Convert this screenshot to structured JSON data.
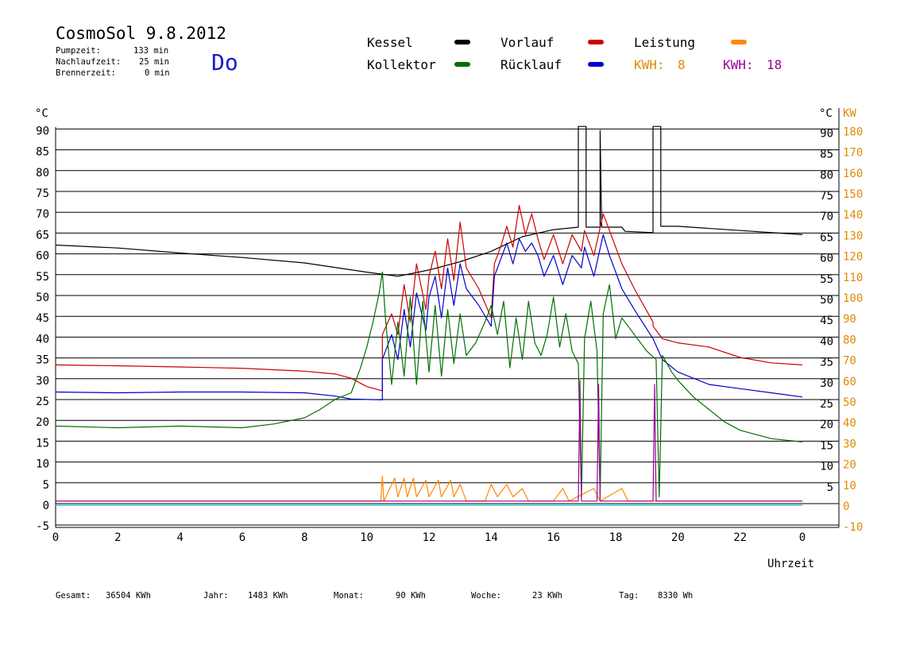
{
  "header": {
    "title": "CosmoSol 9.8.2012",
    "pump_label": "Pumpzeit:",
    "pump_value": "133 min",
    "nach_label": "Nachlaufzeit:",
    "nach_value": "25 min",
    "brenner_label": "Brennerzeit:",
    "brenner_value": "0 min",
    "weekday": "Do"
  },
  "legend": {
    "kessel": "Kessel",
    "kollektor": "Kollektor",
    "vorlauf": "Vorlauf",
    "ruecklauf": "Rücklauf",
    "leistung": "Leistung",
    "kwh1_label": "KWH:",
    "kwh1_value": "8",
    "kwh2_label": "KWH:",
    "kwh2_value": "18"
  },
  "footer": {
    "gesamt_label": "Gesamt:",
    "gesamt_value": "36504 KWh",
    "jahr_label": "Jahr:",
    "jahr_value": "1483 KWh",
    "monat_label": "Monat:",
    "monat_value": "90 KWh",
    "woche_label": "Woche:",
    "woche_value": "23 KWh",
    "tag_label": "Tag:",
    "tag_value": "8330 Wh"
  },
  "colors": {
    "kessel": "#000000",
    "kollektor": "#007000",
    "vorlauf": "#cc0000",
    "ruecklauf": "#0000cc",
    "leistung": "#ff8800",
    "kwh2": "#990099",
    "baseline": "#33cccc",
    "weekday": "#1a1acc",
    "right_axis_orange": "#e08a00"
  },
  "chart_data": {
    "type": "line",
    "xlabel": "Uhrzeit",
    "ylabel": "°C",
    "y2label": "KW",
    "x_ticks": [
      "0",
      "2",
      "4",
      "6",
      "8",
      "10",
      "12",
      "14",
      "16",
      "18",
      "20",
      "22",
      "0"
    ],
    "y_ticks_left": [
      "-5",
      "0",
      "5",
      "10",
      "15",
      "20",
      "25",
      "30",
      "35",
      "40",
      "45",
      "50",
      "55",
      "60",
      "65",
      "70",
      "75",
      "80",
      "85",
      "90"
    ],
    "y_ticks_right": [
      "5",
      "10",
      "15",
      "20",
      "25",
      "30",
      "35",
      "40",
      "45",
      "50",
      "55",
      "60",
      "65",
      "70",
      "75",
      "80",
      "85",
      "90"
    ],
    "y2_ticks": [
      "-10",
      "0",
      "10",
      "20",
      "30",
      "40",
      "50",
      "60",
      "70",
      "80",
      "90",
      "100",
      "110",
      "120",
      "130",
      "140",
      "150",
      "160",
      "170",
      "180"
    ],
    "xlim": [
      0,
      24
    ],
    "ylim": [
      -5,
      92
    ],
    "y2lim": [
      -10,
      184
    ],
    "grid": true,
    "series": [
      {
        "name": "Kessel",
        "color": "#000000",
        "points": [
          [
            0,
            62.5
          ],
          [
            2,
            61.8
          ],
          [
            4,
            60.6
          ],
          [
            6,
            59.5
          ],
          [
            8,
            58.2
          ],
          [
            10,
            56
          ],
          [
            11,
            55
          ],
          [
            12,
            56.5
          ],
          [
            13,
            58.5
          ],
          [
            14,
            61
          ],
          [
            15,
            64.5
          ],
          [
            16,
            66.2
          ],
          [
            16.8,
            66.8
          ],
          [
            16.8,
            91
          ],
          [
            17.05,
            91
          ],
          [
            17.05,
            66.8
          ],
          [
            17.5,
            66.8
          ],
          [
            17.5,
            90
          ],
          [
            17.55,
            66.8
          ],
          [
            18.2,
            66.8
          ],
          [
            18.3,
            65.8
          ],
          [
            19.2,
            65.5
          ],
          [
            19.2,
            91
          ],
          [
            19.45,
            91
          ],
          [
            19.45,
            67
          ],
          [
            20,
            67
          ],
          [
            22,
            66
          ],
          [
            24,
            65
          ]
        ]
      },
      {
        "name": "Vorlauf",
        "color": "#cc0000",
        "points": [
          [
            0,
            33.7
          ],
          [
            2,
            33.5
          ],
          [
            4,
            33.2
          ],
          [
            6,
            32.9
          ],
          [
            8,
            32.2
          ],
          [
            9,
            31.5
          ],
          [
            9.5,
            30.5
          ],
          [
            10,
            28.5
          ],
          [
            10.5,
            27.5
          ],
          [
            10.5,
            41
          ],
          [
            10.8,
            46
          ],
          [
            11,
            41
          ],
          [
            11.2,
            53
          ],
          [
            11.4,
            44
          ],
          [
            11.6,
            58
          ],
          [
            11.9,
            47
          ],
          [
            12,
            55
          ],
          [
            12.2,
            61
          ],
          [
            12.4,
            52
          ],
          [
            12.6,
            64
          ],
          [
            12.8,
            54
          ],
          [
            13,
            68
          ],
          [
            13.2,
            57
          ],
          [
            13.6,
            52
          ],
          [
            14,
            45
          ],
          [
            14.1,
            58
          ],
          [
            14.3,
            62
          ],
          [
            14.5,
            67
          ],
          [
            14.7,
            62
          ],
          [
            14.9,
            72
          ],
          [
            15.1,
            65
          ],
          [
            15.3,
            70
          ],
          [
            15.5,
            64
          ],
          [
            15.7,
            59
          ],
          [
            16,
            65
          ],
          [
            16.3,
            58
          ],
          [
            16.6,
            65
          ],
          [
            16.9,
            61
          ],
          [
            17.0,
            66
          ],
          [
            17.3,
            60
          ],
          [
            17.6,
            70
          ],
          [
            17.8,
            66
          ],
          [
            18.2,
            58
          ],
          [
            18.6,
            52
          ],
          [
            19.2,
            44
          ],
          [
            19.2,
            43
          ],
          [
            19.5,
            40
          ],
          [
            20,
            39
          ],
          [
            21,
            38
          ],
          [
            22,
            35.5
          ],
          [
            23,
            34.2
          ],
          [
            24,
            33.7
          ]
        ]
      },
      {
        "name": "Rücklauf",
        "color": "#0000cc",
        "points": [
          [
            0,
            27.2
          ],
          [
            2,
            27
          ],
          [
            4,
            27.2
          ],
          [
            6,
            27.2
          ],
          [
            8,
            27
          ],
          [
            9,
            26.2
          ],
          [
            9.5,
            25.5
          ],
          [
            10.5,
            25.3
          ],
          [
            10.5,
            35
          ],
          [
            10.8,
            41
          ],
          [
            11,
            35
          ],
          [
            11.2,
            47
          ],
          [
            11.4,
            38
          ],
          [
            11.6,
            51
          ],
          [
            11.9,
            42
          ],
          [
            12,
            50
          ],
          [
            12.2,
            55
          ],
          [
            12.4,
            45
          ],
          [
            12.6,
            57
          ],
          [
            12.8,
            48
          ],
          [
            13,
            58
          ],
          [
            13.2,
            52
          ],
          [
            13.6,
            48
          ],
          [
            14,
            43
          ],
          [
            14.1,
            55
          ],
          [
            14.3,
            59
          ],
          [
            14.5,
            63
          ],
          [
            14.7,
            58
          ],
          [
            14.9,
            64
          ],
          [
            15.1,
            61
          ],
          [
            15.3,
            63
          ],
          [
            15.5,
            60
          ],
          [
            15.7,
            55
          ],
          [
            16,
            60
          ],
          [
            16.3,
            53
          ],
          [
            16.6,
            60
          ],
          [
            16.9,
            57
          ],
          [
            17.0,
            62
          ],
          [
            17.3,
            55
          ],
          [
            17.6,
            65
          ],
          [
            17.8,
            60
          ],
          [
            18.2,
            52
          ],
          [
            18.6,
            47
          ],
          [
            19.2,
            40
          ],
          [
            19.5,
            35
          ],
          [
            20,
            32
          ],
          [
            21,
            29
          ],
          [
            22,
            28
          ],
          [
            23,
            27
          ],
          [
            24,
            26
          ]
        ]
      },
      {
        "name": "Kollektor",
        "color": "#007000",
        "points": [
          [
            0,
            19
          ],
          [
            2,
            18.6
          ],
          [
            4,
            19
          ],
          [
            6,
            18.6
          ],
          [
            7,
            19.5
          ],
          [
            8,
            21
          ],
          [
            8.5,
            23
          ],
          [
            9,
            25.5
          ],
          [
            9.5,
            27
          ],
          [
            9.8,
            33
          ],
          [
            10,
            38
          ],
          [
            10.2,
            44
          ],
          [
            10.4,
            51
          ],
          [
            10.5,
            56
          ],
          [
            10.6,
            45
          ],
          [
            10.8,
            29
          ],
          [
            11,
            44
          ],
          [
            11.2,
            31
          ],
          [
            11.4,
            50
          ],
          [
            11.6,
            29
          ],
          [
            11.8,
            49
          ],
          [
            12,
            32
          ],
          [
            12.2,
            48
          ],
          [
            12.4,
            31
          ],
          [
            12.6,
            47
          ],
          [
            12.8,
            34
          ],
          [
            13,
            46
          ],
          [
            13.2,
            36
          ],
          [
            13.5,
            39
          ],
          [
            13.8,
            44
          ],
          [
            14,
            48
          ],
          [
            14.2,
            41
          ],
          [
            14.4,
            49
          ],
          [
            14.6,
            33
          ],
          [
            14.8,
            45
          ],
          [
            15,
            35
          ],
          [
            15.2,
            49
          ],
          [
            15.4,
            39
          ],
          [
            15.6,
            36
          ],
          [
            15.8,
            41
          ],
          [
            16,
            50
          ],
          [
            16.2,
            38
          ],
          [
            16.4,
            46
          ],
          [
            16.6,
            37
          ],
          [
            16.8,
            34
          ],
          [
            16.9,
            2
          ],
          [
            17.0,
            40
          ],
          [
            17.2,
            49
          ],
          [
            17.4,
            37
          ],
          [
            17.5,
            2
          ],
          [
            17.6,
            46
          ],
          [
            17.8,
            53
          ],
          [
            18.0,
            40
          ],
          [
            18.2,
            45
          ],
          [
            18.6,
            41
          ],
          [
            19.0,
            37
          ],
          [
            19.3,
            35
          ],
          [
            19.4,
            2
          ],
          [
            19.5,
            36
          ],
          [
            19.8,
            32
          ],
          [
            20,
            30
          ],
          [
            20.5,
            26
          ],
          [
            21,
            23
          ],
          [
            21.5,
            20
          ],
          [
            22,
            18
          ],
          [
            23,
            16
          ],
          [
            24,
            15.2
          ]
        ]
      },
      {
        "name": "Leistung",
        "color": "#ff8800",
        "points": [
          [
            0,
            1
          ],
          [
            10.45,
            1
          ],
          [
            10.5,
            7
          ],
          [
            10.55,
            1
          ],
          [
            10.9,
            6.5
          ],
          [
            11.0,
            2
          ],
          [
            11.2,
            6.5
          ],
          [
            11.3,
            2
          ],
          [
            11.5,
            6.5
          ],
          [
            11.6,
            2
          ],
          [
            11.9,
            6
          ],
          [
            12.0,
            2
          ],
          [
            12.3,
            6
          ],
          [
            12.4,
            2
          ],
          [
            12.7,
            6
          ],
          [
            12.8,
            2
          ],
          [
            13.0,
            5
          ],
          [
            13.2,
            1
          ],
          [
            13.8,
            1
          ],
          [
            14.0,
            5
          ],
          [
            14.2,
            2
          ],
          [
            14.5,
            5
          ],
          [
            14.7,
            2
          ],
          [
            15.0,
            4
          ],
          [
            15.2,
            1
          ],
          [
            16,
            1
          ],
          [
            16.3,
            4
          ],
          [
            16.5,
            1
          ],
          [
            17.3,
            4
          ],
          [
            17.5,
            1
          ],
          [
            18.2,
            4
          ],
          [
            18.4,
            1
          ],
          [
            24,
            1
          ]
        ]
      },
      {
        "name": "KWH2",
        "color": "#990099",
        "points": [
          [
            0,
            1
          ],
          [
            16.8,
            1
          ],
          [
            16.85,
            30
          ],
          [
            16.9,
            1
          ],
          [
            17.4,
            1
          ],
          [
            17.45,
            29
          ],
          [
            17.5,
            1
          ],
          [
            19.2,
            1
          ],
          [
            19.25,
            29
          ],
          [
            19.3,
            1
          ],
          [
            24,
            1
          ]
        ]
      }
    ]
  }
}
